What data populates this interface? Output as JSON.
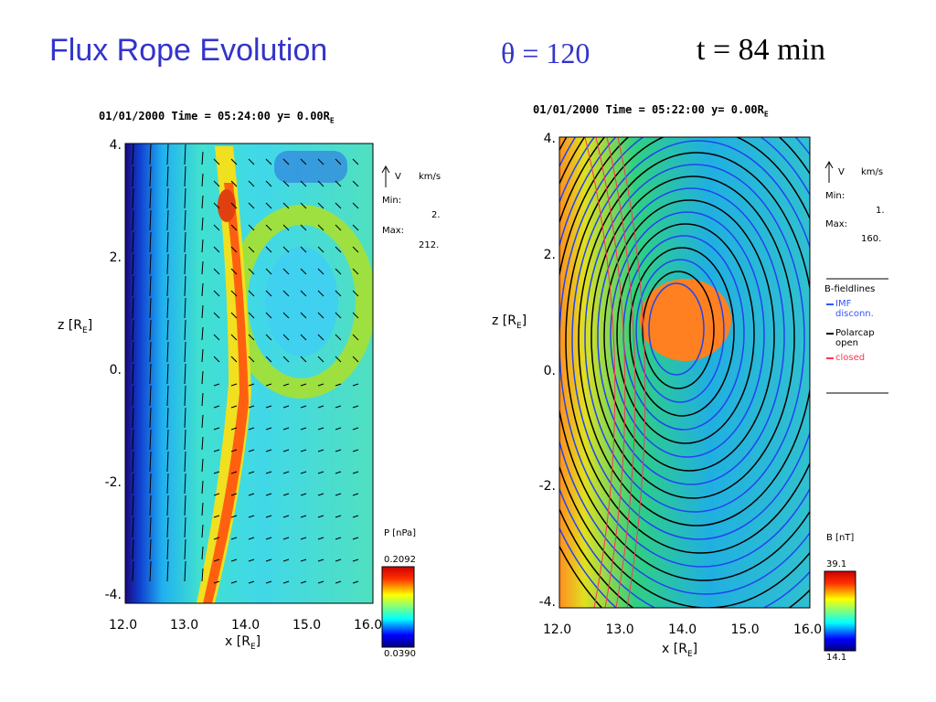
{
  "slide": {
    "title": "Flux Rope Evolution",
    "theta": "θ = 120",
    "time": "t = 84 min"
  },
  "chart_data": [
    {
      "type": "heatmap",
      "header": "01/01/2000 Time = 05:24:00 y= 0.00R",
      "header_sub": "E",
      "xlabel": "x [R",
      "xlabel_sub": "E",
      "ylabel": "z [R",
      "ylabel_sub": "E",
      "xlim": [
        12.0,
        16.0
      ],
      "ylim": [
        -4,
        4
      ],
      "xticks": [
        "12.0",
        "13.0",
        "14.0",
        "15.0",
        "16.0"
      ],
      "yticks": [
        "4.",
        "2.",
        "0.",
        "-2.",
        "-4."
      ],
      "vector": {
        "label": "V",
        "units": "km/s",
        "min_label": "Min:",
        "min": "2.",
        "max_label": "Max:",
        "max": "212."
      },
      "colorbar": {
        "label": "P [nPa]",
        "max": "0.2092",
        "min": "0.0390"
      }
    },
    {
      "type": "heatmap",
      "header": "01/01/2000 Time = 05:22:00 y= 0.00R",
      "header_sub": "E",
      "xlabel": "x [R",
      "xlabel_sub": "E",
      "ylabel": "z [R",
      "ylabel_sub": "E",
      "xlim": [
        12.0,
        16.0
      ],
      "ylim": [
        -4,
        4
      ],
      "xticks": [
        "12.0",
        "13.0",
        "14.0",
        "15.0",
        "16.0"
      ],
      "yticks": [
        "4.",
        "2.",
        "0.",
        "-2.",
        "-4."
      ],
      "vector": {
        "label": "V",
        "units": "km/s",
        "min_label": "Min:",
        "min": "1.",
        "max_label": "Max:",
        "max": "160."
      },
      "legend": {
        "title": "B-fieldlines",
        "items": [
          {
            "label": "IMF disconn.",
            "color": "#3355ff"
          },
          {
            "label": "Polarcap open",
            "color": "#000000"
          },
          {
            "label": "closed",
            "color": "#ff3355"
          }
        ]
      },
      "colorbar": {
        "label": "B [nT]",
        "max": "39.1",
        "min": "14.1"
      }
    }
  ]
}
